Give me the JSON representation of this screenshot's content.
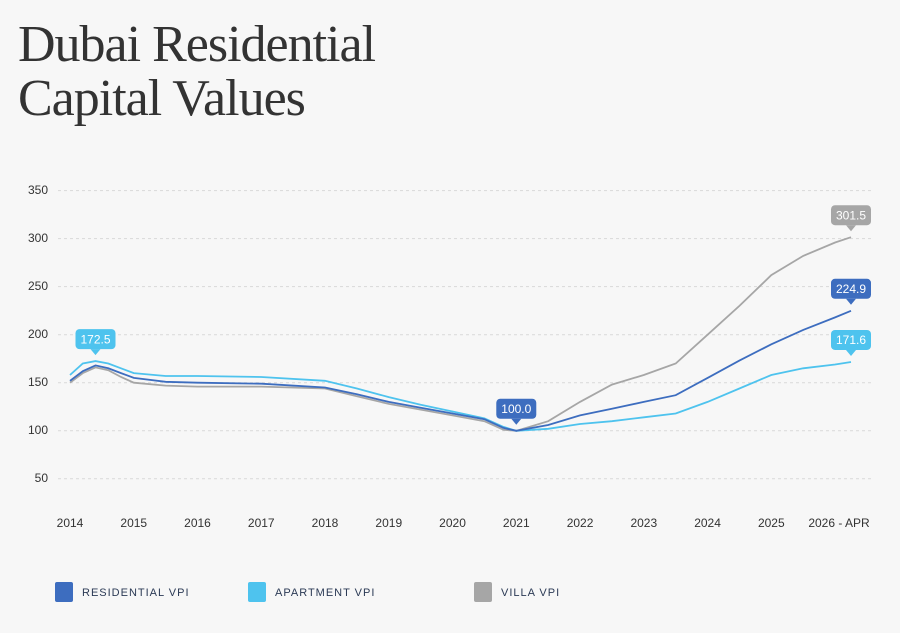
{
  "chart_data": {
    "type": "line",
    "title": "Dubai Residential Capital Values",
    "x": [
      2014,
      2014.2,
      2014.4,
      2014.6,
      2014.8,
      2015,
      2015.5,
      2016,
      2017,
      2018,
      2018.5,
      2019,
      2019.5,
      2020,
      2020.5,
      2020.8,
      2021,
      2021.5,
      2022,
      2022.5,
      2023,
      2023.5,
      2024,
      2024.5,
      2025,
      2025.5,
      2026,
      2026.25
    ],
    "series": [
      {
        "name": "RESIDENTIAL VPI",
        "color": "#3d6dbf",
        "values": [
          152,
          162,
          168,
          165,
          160,
          155,
          151,
          150,
          149,
          145,
          138,
          130,
          124,
          118,
          112,
          103,
          100,
          106,
          116,
          123,
          130,
          137,
          155,
          173,
          190,
          205,
          218,
          224.9
        ],
        "value_labels": [
          null,
          null,
          null,
          null,
          null,
          null,
          null,
          null,
          null,
          null,
          null,
          null,
          null,
          null,
          null,
          null,
          "100.0",
          null,
          null,
          null,
          null,
          null,
          null,
          null,
          null,
          null,
          null,
          "224.9"
        ]
      },
      {
        "name": "APARTMENT VPI",
        "color": "#4ec3ee",
        "values": [
          158,
          170,
          172.5,
          170,
          165,
          160,
          157,
          157,
          156,
          152,
          144,
          135,
          127,
          120,
          113,
          104,
          100,
          102,
          107,
          110,
          114,
          118,
          130,
          144,
          158,
          165,
          169,
          171.6
        ],
        "value_labels": [
          null,
          null,
          "172.5",
          null,
          null,
          null,
          null,
          null,
          null,
          null,
          null,
          null,
          null,
          null,
          null,
          null,
          null,
          null,
          null,
          null,
          null,
          null,
          null,
          null,
          null,
          null,
          null,
          "171.6"
        ]
      },
      {
        "name": "VILLA VPI",
        "color": "#a6a6a6",
        "values": [
          150,
          160,
          166,
          163,
          156,
          150,
          147,
          146,
          146,
          144,
          136,
          128,
          122,
          116,
          110,
          101,
          100,
          110,
          130,
          148,
          158,
          170,
          200,
          230,
          262,
          282,
          296,
          301.5
        ],
        "value_labels": [
          null,
          null,
          null,
          null,
          null,
          null,
          null,
          null,
          null,
          null,
          null,
          null,
          null,
          null,
          null,
          null,
          null,
          null,
          null,
          null,
          null,
          null,
          null,
          null,
          null,
          null,
          null,
          "301.5"
        ]
      }
    ],
    "xlim": [
      2014,
      2026.25
    ],
    "xticks": [
      2014,
      2015,
      2016,
      2017,
      2018,
      2019,
      2020,
      2021,
      2022,
      2023,
      2024,
      2025,
      {
        "value": 2026.25,
        "label": "2026 - APR"
      }
    ],
    "ylim": [
      30,
      360
    ],
    "yticks": [
      50,
      100,
      150,
      200,
      250,
      300,
      350
    ],
    "grid": true,
    "legend": "bottom"
  }
}
